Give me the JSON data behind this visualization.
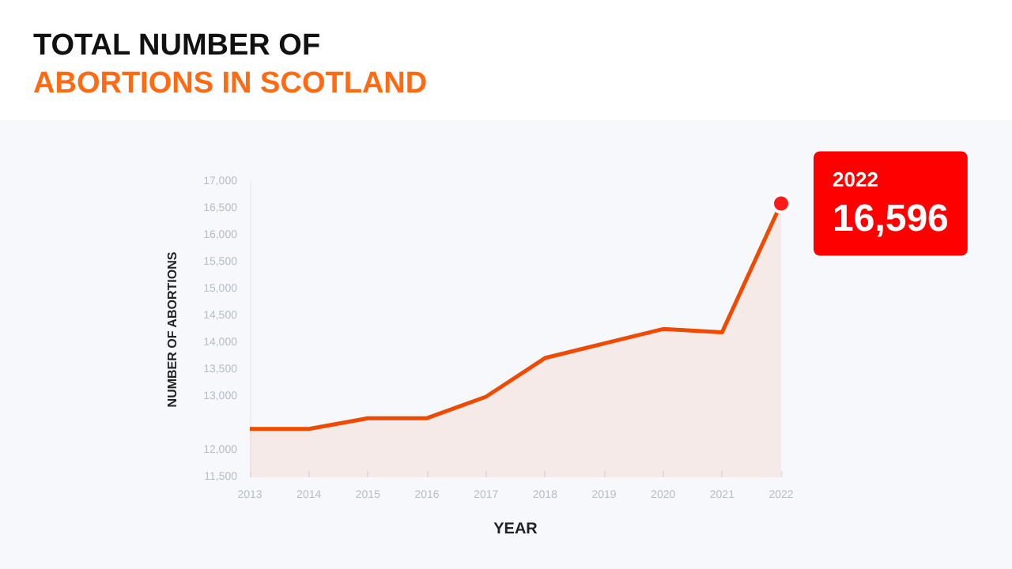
{
  "chart_data": {
    "type": "area",
    "title": "TOTAL NUMBER OF\nABORTIONS IN SCOTLAND",
    "xlabel": "YEAR",
    "ylabel": "NUMBER OF ABORTIONS",
    "categories": [
      "2013",
      "2014",
      "2015",
      "2016",
      "2017",
      "2018",
      "2019",
      "2020",
      "2021",
      "2022"
    ],
    "series": [
      {
        "color": "#f04a00",
        "values": [
          12400,
          12400,
          12600,
          12600,
          13000,
          13720,
          13990,
          14260,
          14200,
          16596
        ],
        "value_labels": [
          null,
          null,
          null,
          null,
          null,
          null,
          null,
          null,
          null,
          "16,596"
        ]
      }
    ],
    "annotations": [
      {
        "text": "2022",
        "x": "2022",
        "y": 16596
      }
    ],
    "ylim": [
      11500,
      17000
    ],
    "yticks": [
      {
        "value": 11500,
        "label": "11,500"
      },
      {
        "value": 12000,
        "label": "12,000"
      },
      {
        "value": 13000,
        "label": "13,000"
      },
      {
        "value": 13500,
        "label": "13,500"
      },
      {
        "value": 14000,
        "label": "14,000"
      },
      {
        "value": 14500,
        "label": "14,500"
      },
      {
        "value": 15000,
        "label": "15,000"
      },
      {
        "value": 15500,
        "label": "15,500"
      },
      {
        "value": 16000,
        "label": "16,000"
      },
      {
        "value": 16500,
        "label": "16,500"
      },
      {
        "value": 17000,
        "label": "17,000"
      }
    ],
    "grid": false,
    "marker": "none"
  }
}
